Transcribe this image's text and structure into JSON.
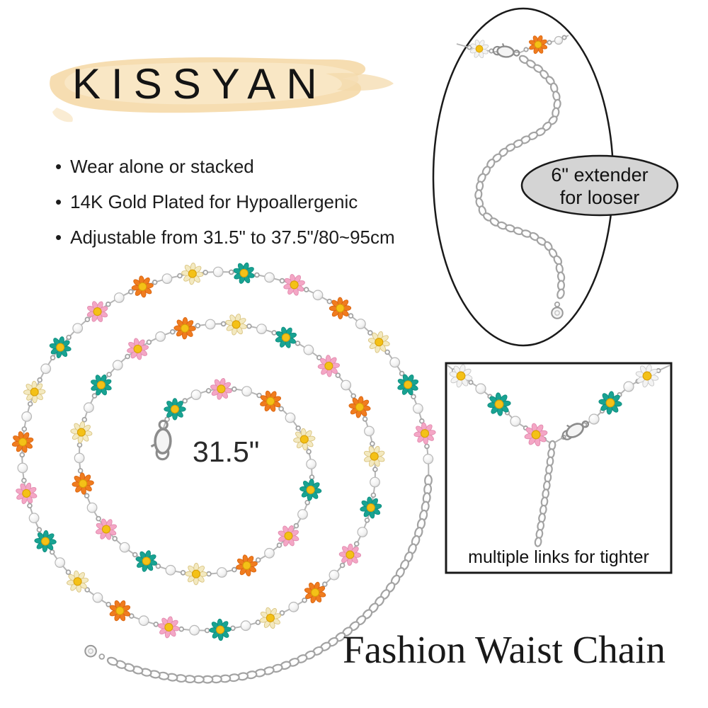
{
  "brand": {
    "logo": "KISSYAN",
    "brush_colors": [
      "#f5d9a8",
      "#f9e9cc",
      "#f3d9a8"
    ]
  },
  "features": {
    "bullet_char": "•",
    "items": [
      "Wear alone or stacked",
      "14K Gold Plated for Hypoallergenic",
      "Adjustable from 31.5\" to 37.5\"/80~95cm"
    ]
  },
  "spiral": {
    "length_label": "31.5\""
  },
  "extender_panel": {
    "badge_line1": "6\" extender",
    "badge_line2": "for looser",
    "badge_fill": "#d4d4d4",
    "outline": "#1a1a1a",
    "fill": "#ffffff"
  },
  "links_panel": {
    "caption": "multiple links for tighter",
    "outline": "#1a1a1a",
    "fill": "#ffffff"
  },
  "title": {
    "text": "Fashion Waist Chain"
  },
  "jewelry": {
    "flower_colors": {
      "teal": {
        "petal": "#18a392",
        "edge": "#0e8d7f"
      },
      "pink": {
        "petal": "#f4a6c5",
        "edge": "#e18aae"
      },
      "orange": {
        "petal": "#f07c1e",
        "edge": "#d96410"
      },
      "cream": {
        "petal": "#f3e9c0",
        "edge": "#d9c37e"
      },
      "white": {
        "petal": "#f3f3f3",
        "edge": "#c8c8c8"
      }
    },
    "spiral_cycle": [
      "teal",
      "pink",
      "orange",
      "cream"
    ],
    "flower_center": {
      "fill": "#f4c117",
      "edge": "#d89f07"
    },
    "metal": {
      "chain": "#b5b5b5",
      "link": "#a3a3a3",
      "clasp": "#8c8c8c",
      "clasp_fill": "#f4f4f4"
    },
    "pearl": {
      "fill": "#ffffff",
      "shade": "#cfcfcf",
      "edge": "#b8b8b8"
    }
  }
}
